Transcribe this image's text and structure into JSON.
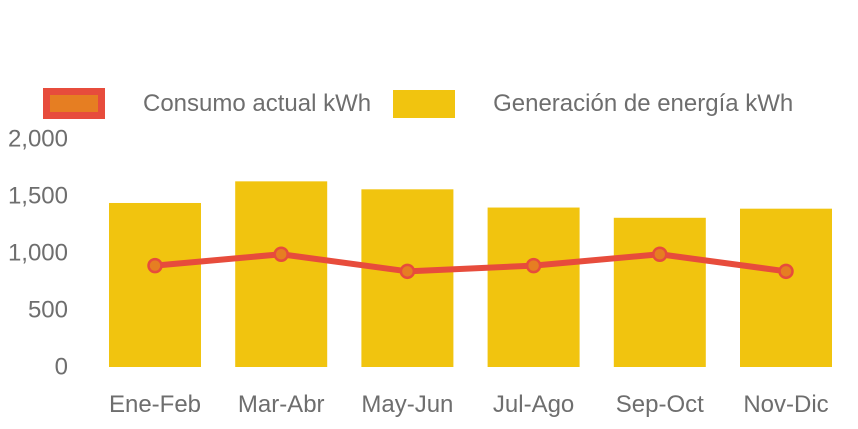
{
  "colors": {
    "consumption_line": "#E74C3C",
    "consumption_point_fill": "#E67E22",
    "generation_bar": "#F1C40F",
    "label_text": "#6E6E6E",
    "background": "#FFFFFF"
  },
  "legend": {
    "items": [
      {
        "id": "consumption",
        "label": "Consumo actual kWh"
      },
      {
        "id": "generation",
        "label": "Generación de energía kWh"
      }
    ]
  },
  "chart_data": {
    "type": "bar",
    "subtype": "bar-with-line-overlay",
    "categories": [
      "Ene-Feb",
      "Mar-Abr",
      "May-Jun",
      "Jul-Ago",
      "Sep-Oct",
      "Nov-Dic"
    ],
    "series": [
      {
        "name": "Consumo actual kWh",
        "type": "line",
        "values": [
          890,
          990,
          840,
          890,
          990,
          840
        ],
        "color": "#E74C3C",
        "point_color": "#E67E22"
      },
      {
        "name": "Generación de energía kWh",
        "type": "bar",
        "values": [
          1440,
          1630,
          1560,
          1400,
          1310,
          1390
        ],
        "color": "#F1C40F"
      }
    ],
    "title": "",
    "xlabel": "",
    "ylabel": "",
    "ylim": [
      0,
      2000
    ],
    "yticks": [
      0,
      500,
      1000,
      1500,
      2000
    ],
    "ytick_labels": [
      "0",
      "500",
      "1,000",
      "1,500",
      "2,000"
    ],
    "grid": false,
    "legend_position": "top"
  }
}
